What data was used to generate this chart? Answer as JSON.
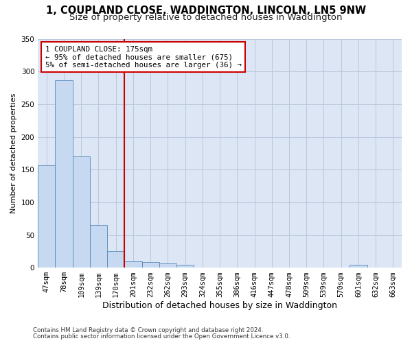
{
  "title_line1": "1, COUPLAND CLOSE, WADDINGTON, LINCOLN, LN5 9NW",
  "title_line2": "Size of property relative to detached houses in Waddington",
  "xlabel": "Distribution of detached houses by size in Waddington",
  "ylabel": "Number of detached properties",
  "categories": [
    "47sqm",
    "78sqm",
    "109sqm",
    "139sqm",
    "170sqm",
    "201sqm",
    "232sqm",
    "262sqm",
    "293sqm",
    "324sqm",
    "355sqm",
    "386sqm",
    "416sqm",
    "447sqm",
    "478sqm",
    "509sqm",
    "539sqm",
    "570sqm",
    "601sqm",
    "632sqm",
    "663sqm"
  ],
  "values": [
    157,
    287,
    170,
    65,
    25,
    10,
    9,
    7,
    4,
    0,
    0,
    0,
    0,
    0,
    0,
    0,
    0,
    0,
    4,
    0,
    0
  ],
  "bar_color": "#c6d9f0",
  "bar_edge_color": "#5588bb",
  "vline_x": 4.5,
  "vline_color": "#cc0000",
  "annotation_text": "1 COUPLAND CLOSE: 175sqm\n← 95% of detached houses are smaller (675)\n5% of semi-detached houses are larger (36) →",
  "annotation_box_color": "#ffffff",
  "annotation_box_edge": "#cc0000",
  "ylim": [
    0,
    350
  ],
  "yticks": [
    0,
    50,
    100,
    150,
    200,
    250,
    300,
    350
  ],
  "footer_line1": "Contains HM Land Registry data © Crown copyright and database right 2024.",
  "footer_line2": "Contains public sector information licensed under the Open Government Licence v3.0.",
  "bg_color": "#ffffff",
  "plot_bg_color": "#dce6f5",
  "grid_color": "#b8c8dc",
  "title1_fontsize": 10.5,
  "title2_fontsize": 9.5,
  "tick_fontsize": 7.5,
  "ylabel_fontsize": 8,
  "xlabel_fontsize": 9
}
